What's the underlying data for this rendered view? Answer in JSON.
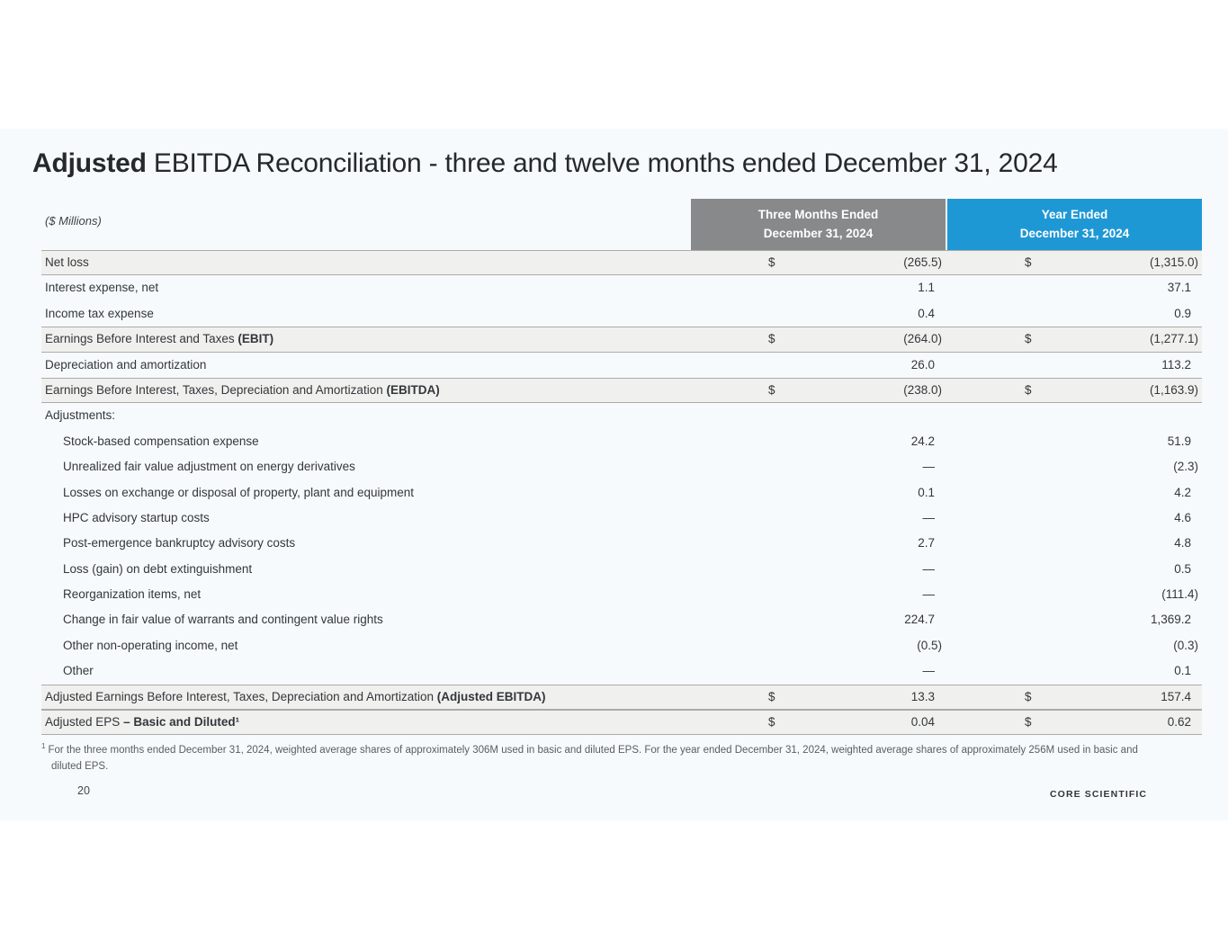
{
  "slide": {
    "title": {
      "bold": "Adjusted",
      "rest": " EBITDA Reconciliation - three and twelve months ended December 31, 2024"
    },
    "units_label": "($ Millions)",
    "page_number": "20",
    "logo_text": "CORE SCIENTIFIC"
  },
  "colors": {
    "slide_bg": "#f7fafc",
    "header_gray": "#87898b",
    "header_blue": "#1e98d5",
    "total_row_bg": "#f0f0ee",
    "row_border": "#ababab"
  },
  "table": {
    "col_headers": [
      {
        "line1": "Three Months Ended",
        "line2": "December 31, 2024"
      },
      {
        "line1": "Year Ended",
        "line2": "December 31, 2024"
      }
    ],
    "rows": [
      {
        "label": "Net loss",
        "bold": "",
        "indent": false,
        "type": "total",
        "d1": "$",
        "v1": "(265.5)",
        "d2": "$",
        "v2": "(1,315.0)"
      },
      {
        "label": "Interest expense, net",
        "bold": "",
        "indent": false,
        "type": "normal",
        "d1": "",
        "v1": "1.1",
        "d2": "",
        "v2": "37.1"
      },
      {
        "label": "Income tax expense",
        "bold": "",
        "indent": false,
        "type": "normal",
        "d1": "",
        "v1": "0.4",
        "d2": "",
        "v2": "0.9"
      },
      {
        "label": "Earnings Before Interest and Taxes ",
        "bold": "(EBIT)",
        "indent": false,
        "type": "total",
        "d1": "$",
        "v1": "(264.0)",
        "d2": "$",
        "v2": "(1,277.1)"
      },
      {
        "label": "Depreciation and amortization",
        "bold": "",
        "indent": false,
        "type": "normal",
        "d1": "",
        "v1": "26.0",
        "d2": "",
        "v2": "113.2"
      },
      {
        "label": "Earnings Before Interest, Taxes, Depreciation and Amortization ",
        "bold": "(EBITDA)",
        "indent": false,
        "type": "total",
        "d1": "$",
        "v1": "(238.0)",
        "d2": "$",
        "v2": "(1,163.9)"
      },
      {
        "label": "Adjustments:",
        "bold": "",
        "indent": false,
        "type": "normal",
        "d1": "",
        "v1": "",
        "d2": "",
        "v2": ""
      },
      {
        "label": "Stock-based compensation expense",
        "bold": "",
        "indent": true,
        "type": "normal",
        "d1": "",
        "v1": "24.2",
        "d2": "",
        "v2": "51.9"
      },
      {
        "label": "Unrealized fair value adjustment on energy derivatives",
        "bold": "",
        "indent": true,
        "type": "normal",
        "d1": "",
        "v1": "—",
        "d2": "",
        "v2": "(2.3)"
      },
      {
        "label": "Losses on exchange or disposal of property, plant and equipment",
        "bold": "",
        "indent": true,
        "type": "normal",
        "d1": "",
        "v1": "0.1",
        "d2": "",
        "v2": "4.2"
      },
      {
        "label": "HPC advisory startup costs",
        "bold": "",
        "indent": true,
        "type": "normal",
        "d1": "",
        "v1": "—",
        "d2": "",
        "v2": "4.6"
      },
      {
        "label": "Post-emergence bankruptcy advisory costs",
        "bold": "",
        "indent": true,
        "type": "normal",
        "d1": "",
        "v1": "2.7",
        "d2": "",
        "v2": "4.8"
      },
      {
        "label": "Loss (gain) on debt extinguishment",
        "bold": "",
        "indent": true,
        "type": "normal",
        "d1": "",
        "v1": "—",
        "d2": "",
        "v2": "0.5"
      },
      {
        "label": "Reorganization items, net",
        "bold": "",
        "indent": true,
        "type": "normal",
        "d1": "",
        "v1": "—",
        "d2": "",
        "v2": "(111.4)"
      },
      {
        "label": "Change in fair value of warrants and contingent value rights",
        "bold": "",
        "indent": true,
        "type": "normal",
        "d1": "",
        "v1": "224.7",
        "d2": "",
        "v2": "1,369.2"
      },
      {
        "label": "Other non-operating income, net",
        "bold": "",
        "indent": true,
        "type": "normal",
        "d1": "",
        "v1": "(0.5)",
        "d2": "",
        "v2": "(0.3)"
      },
      {
        "label": "Other",
        "bold": "",
        "indent": true,
        "type": "normal",
        "d1": "",
        "v1": "—",
        "d2": "",
        "v2": "0.1"
      },
      {
        "label": "Adjusted Earnings Before Interest, Taxes, Depreciation and Amortization ",
        "bold": "(Adjusted EBITDA)",
        "indent": false,
        "type": "total",
        "d1": "$",
        "v1": "13.3",
        "d2": "$",
        "v2": "157.4"
      },
      {
        "label": "Adjusted EPS ",
        "bold": "– Basic and Diluted¹",
        "indent": false,
        "type": "total",
        "d1": "$",
        "v1": "0.04",
        "d2": "$",
        "v2": "0.62"
      }
    ]
  },
  "footnote": {
    "marker": "1",
    "text": "For the three months ended December 31, 2024, weighted average shares of approximately 306M used in basic and diluted EPS. For the year ended December 31, 2024, weighted average shares of approximately 256M used in basic and diluted EPS."
  }
}
